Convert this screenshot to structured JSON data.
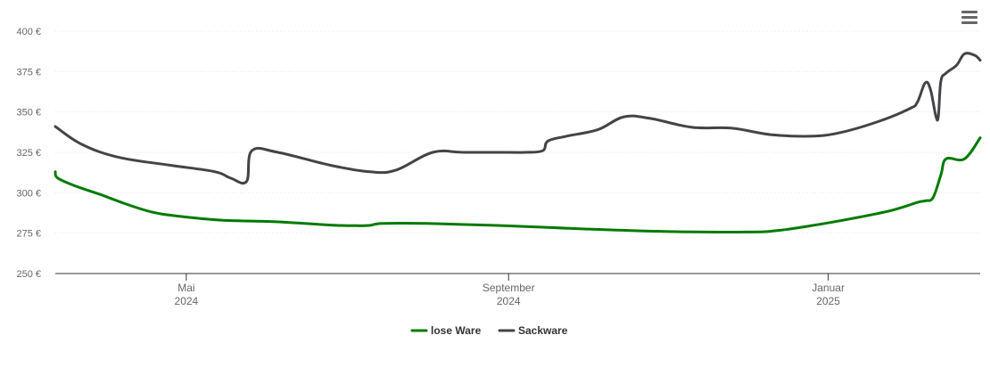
{
  "chart_data": {
    "type": "line",
    "title": "",
    "xlabel": "",
    "ylabel": "",
    "ylim": [
      250,
      400
    ],
    "y_ticks": [
      "250 €",
      "275 €",
      "300 €",
      "325 €",
      "350 €",
      "375 €",
      "400 €"
    ],
    "y_tick_values": [
      250,
      275,
      300,
      325,
      350,
      375,
      400
    ],
    "x_ticks": [
      {
        "date": "2024-05-01",
        "month": "Mai",
        "year": "2024"
      },
      {
        "date": "2024-09-01",
        "month": "September",
        "year": "2024"
      },
      {
        "date": "2025-01-01",
        "month": "Januar",
        "year": "2025"
      }
    ],
    "x_range": [
      "2024-03-12",
      "2025-02-28"
    ],
    "grid": "horizontal",
    "legend_position": "bottom-center",
    "series": [
      {
        "name": "lose Ware",
        "color": "#007a00",
        "points": [
          [
            "2024-03-12",
            313
          ],
          [
            "2024-03-13",
            309
          ],
          [
            "2024-03-20",
            304
          ],
          [
            "2024-03-29",
            299
          ],
          [
            "2024-04-08",
            293
          ],
          [
            "2024-04-18",
            288
          ],
          [
            "2024-04-28",
            285.5
          ],
          [
            "2024-05-15",
            283
          ],
          [
            "2024-06-05",
            282
          ],
          [
            "2024-06-25",
            280
          ],
          [
            "2024-07-05",
            279.6
          ],
          [
            "2024-07-10",
            279.8
          ],
          [
            "2024-07-15",
            281
          ],
          [
            "2024-08-01",
            281
          ],
          [
            "2024-09-01",
            279.5
          ],
          [
            "2024-10-01",
            277.5
          ],
          [
            "2024-11-01",
            276
          ],
          [
            "2024-12-01",
            275.7
          ],
          [
            "2024-12-12",
            276.5
          ],
          [
            "2024-12-25",
            279.5
          ],
          [
            "2025-01-10",
            284
          ],
          [
            "2025-01-25",
            289
          ],
          [
            "2025-02-04",
            294
          ],
          [
            "2025-02-07",
            295
          ],
          [
            "2025-02-10",
            297
          ],
          [
            "2025-02-13",
            311
          ],
          [
            "2025-02-15",
            321
          ],
          [
            "2025-02-22",
            321
          ],
          [
            "2025-02-28",
            334
          ]
        ]
      },
      {
        "name": "Sackware",
        "color": "#434348",
        "points": [
          [
            "2024-03-12",
            341
          ],
          [
            "2024-03-22",
            330
          ],
          [
            "2024-04-05",
            322
          ],
          [
            "2024-04-25",
            317
          ],
          [
            "2024-05-12",
            313
          ],
          [
            "2024-05-18",
            309
          ],
          [
            "2024-05-24",
            307
          ],
          [
            "2024-05-26",
            326
          ],
          [
            "2024-06-05",
            325
          ],
          [
            "2024-06-25",
            317
          ],
          [
            "2024-07-10",
            313
          ],
          [
            "2024-07-20",
            314
          ],
          [
            "2024-08-03",
            325
          ],
          [
            "2024-08-15",
            325
          ],
          [
            "2024-09-01",
            325
          ],
          [
            "2024-09-07",
            325
          ],
          [
            "2024-09-14",
            326
          ],
          [
            "2024-09-16",
            332
          ],
          [
            "2024-09-23",
            335
          ],
          [
            "2024-10-05",
            339
          ],
          [
            "2024-10-15",
            347
          ],
          [
            "2024-10-25",
            346
          ],
          [
            "2024-11-10",
            340.5
          ],
          [
            "2024-11-25",
            340
          ],
          [
            "2024-12-10",
            336
          ],
          [
            "2024-12-25",
            335
          ],
          [
            "2025-01-05",
            337
          ],
          [
            "2025-01-20",
            344
          ],
          [
            "2025-02-01",
            352
          ],
          [
            "2025-02-04",
            356
          ],
          [
            "2025-02-07",
            368
          ],
          [
            "2025-02-09",
            364
          ],
          [
            "2025-02-11",
            348
          ],
          [
            "2025-02-12",
            347
          ],
          [
            "2025-02-13",
            369
          ],
          [
            "2025-02-15",
            374
          ],
          [
            "2025-02-19",
            379
          ],
          [
            "2025-02-22",
            386
          ],
          [
            "2025-02-26",
            385
          ],
          [
            "2025-02-28",
            382
          ]
        ]
      }
    ]
  },
  "menu": {
    "icon": "hamburger-menu-icon"
  }
}
